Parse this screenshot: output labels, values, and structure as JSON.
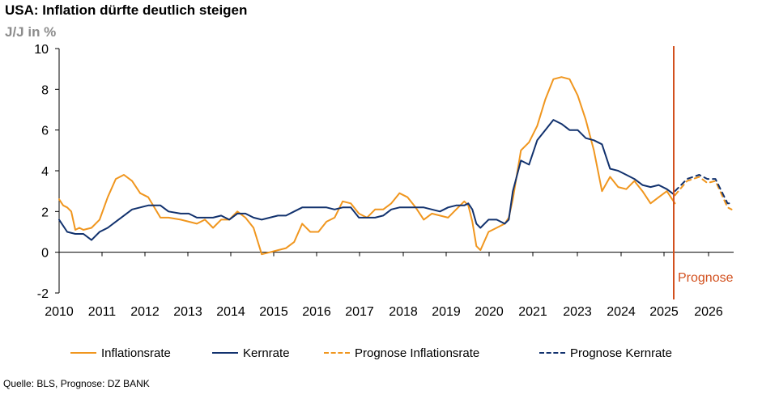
{
  "chart_data": {
    "type": "line",
    "title": "USA: Inflation dürfte deutlich steigen",
    "subtitle": "J/J in %",
    "source": "Quelle: BLS, Prognose: DZ BANK",
    "ylim": [
      -2,
      10
    ],
    "y_ticks": [
      "-2",
      "0",
      "2",
      "4",
      "6",
      "8",
      "10"
    ],
    "x_ticks": [
      "2010",
      "2011",
      "2012",
      "2013",
      "2014",
      "2015",
      "2016",
      "2017",
      "2018",
      "2019",
      "2020",
      "2021",
      "2023",
      "2024",
      "2025",
      "2026"
    ],
    "prognose_label": "Prognose",
    "prognose_start": 2025.2,
    "colors": {
      "inflation": "#f0961e",
      "core": "#12326e",
      "prognose_line": "#d2501e",
      "axis": "#000000"
    },
    "legend": [
      {
        "name": "Inflationsrate",
        "color": "#f0961e",
        "style": "solid"
      },
      {
        "name": "Kernrate",
        "color": "#12326e",
        "style": "solid"
      },
      {
        "name": "Prognose Inflationsrate",
        "color": "#f0961e",
        "style": "dashed"
      },
      {
        "name": "Prognose Kernrate",
        "color": "#12326e",
        "style": "dashed"
      }
    ],
    "series": [
      {
        "name": "Inflationsrate",
        "x": [
          2010.0,
          2010.1,
          2010.2,
          2010.3,
          2010.4,
          2010.5,
          2010.6,
          2010.8,
          2011.0,
          2011.2,
          2011.4,
          2011.6,
          2011.8,
          2012.0,
          2012.2,
          2012.5,
          2012.7,
          2013.0,
          2013.2,
          2013.4,
          2013.6,
          2013.8,
          2014.0,
          2014.2,
          2014.4,
          2014.6,
          2014.8,
          2015.0,
          2015.2,
          2015.4,
          2015.6,
          2015.8,
          2016.0,
          2016.2,
          2016.4,
          2016.6,
          2016.8,
          2017.0,
          2017.2,
          2017.4,
          2017.6,
          2017.8,
          2018.0,
          2018.2,
          2018.4,
          2018.6,
          2018.8,
          2019.0,
          2019.2,
          2019.4,
          2019.6,
          2019.8,
          2020.0,
          2020.1,
          2020.2,
          2020.3,
          2020.4,
          2020.6,
          2020.8,
          2021.0,
          2021.1,
          2021.2,
          2021.4,
          2021.6,
          2021.8,
          2022.0,
          2022.2,
          2022.4,
          2022.6,
          2022.8,
          2023.0,
          2023.2,
          2023.4,
          2023.6,
          2023.8,
          2024.0,
          2024.2,
          2024.4,
          2024.6,
          2024.8,
          2025.0,
          2025.2
        ],
        "values": [
          2.6,
          2.3,
          2.2,
          2.0,
          1.1,
          1.2,
          1.1,
          1.2,
          1.6,
          2.7,
          3.6,
          3.8,
          3.5,
          2.9,
          2.7,
          1.7,
          1.7,
          1.6,
          1.5,
          1.4,
          1.6,
          1.2,
          1.6,
          1.6,
          2.0,
          1.7,
          1.2,
          -0.1,
          0.0,
          0.1,
          0.2,
          0.5,
          1.4,
          1.0,
          1.0,
          1.5,
          1.7,
          2.5,
          2.4,
          1.9,
          1.7,
          2.1,
          2.1,
          2.4,
          2.9,
          2.7,
          2.2,
          1.6,
          1.9,
          1.8,
          1.7,
          2.1,
          2.5,
          2.3,
          1.5,
          0.3,
          0.1,
          1.0,
          1.2,
          1.4,
          1.7,
          2.6,
          5.0,
          5.4,
          6.2,
          7.5,
          8.5,
          8.6,
          8.5,
          7.7,
          6.5,
          5.0,
          3.0,
          3.7,
          3.2,
          3.1,
          3.5,
          3.0,
          2.4,
          2.7,
          3.0,
          2.4
        ]
      },
      {
        "name": "Kernrate",
        "x": [
          2010.0,
          2010.2,
          2010.4,
          2010.6,
          2010.8,
          2011.0,
          2011.2,
          2011.4,
          2011.6,
          2011.8,
          2012.0,
          2012.2,
          2012.5,
          2012.7,
          2013.0,
          2013.2,
          2013.4,
          2013.6,
          2013.8,
          2014.0,
          2014.2,
          2014.4,
          2014.6,
          2014.8,
          2015.0,
          2015.2,
          2015.4,
          2015.6,
          2015.8,
          2016.0,
          2016.2,
          2016.4,
          2016.6,
          2016.8,
          2017.0,
          2017.2,
          2017.4,
          2017.6,
          2017.8,
          2018.0,
          2018.2,
          2018.4,
          2018.6,
          2018.8,
          2019.0,
          2019.2,
          2019.4,
          2019.6,
          2019.8,
          2020.0,
          2020.1,
          2020.2,
          2020.3,
          2020.4,
          2020.6,
          2020.8,
          2021.0,
          2021.1,
          2021.2,
          2021.4,
          2021.6,
          2021.8,
          2022.0,
          2022.2,
          2022.4,
          2022.6,
          2022.8,
          2023.0,
          2023.2,
          2023.4,
          2023.6,
          2023.8,
          2024.0,
          2024.2,
          2024.4,
          2024.6,
          2024.8,
          2025.0,
          2025.2
        ],
        "values": [
          1.6,
          1.0,
          0.9,
          0.9,
          0.6,
          1.0,
          1.2,
          1.5,
          1.8,
          2.1,
          2.2,
          2.3,
          2.3,
          2.0,
          1.9,
          1.9,
          1.7,
          1.7,
          1.7,
          1.8,
          1.6,
          1.9,
          1.9,
          1.7,
          1.6,
          1.7,
          1.8,
          1.8,
          2.0,
          2.2,
          2.2,
          2.2,
          2.2,
          2.1,
          2.2,
          2.2,
          1.7,
          1.7,
          1.7,
          1.8,
          2.1,
          2.2,
          2.2,
          2.2,
          2.2,
          2.1,
          2.0,
          2.2,
          2.3,
          2.3,
          2.4,
          2.1,
          1.4,
          1.2,
          1.6,
          1.6,
          1.4,
          1.6,
          3.0,
          4.5,
          4.3,
          5.5,
          6.0,
          6.5,
          6.3,
          6.0,
          6.0,
          5.6,
          5.5,
          5.3,
          4.1,
          4.0,
          3.8,
          3.6,
          3.3,
          3.2,
          3.3,
          3.1,
          2.8
        ]
      },
      {
        "name": "Prognose Inflationsrate",
        "x": [
          2025.2,
          2025.5,
          2025.8,
          2026.0,
          2026.2,
          2026.5,
          2026.6
        ],
        "values": [
          2.8,
          3.5,
          3.7,
          3.4,
          3.5,
          2.2,
          2.1
        ]
      },
      {
        "name": "Prognose Kernrate",
        "x": [
          2025.2,
          2025.5,
          2025.8,
          2026.0,
          2026.2,
          2026.5,
          2026.6
        ],
        "values": [
          3.0,
          3.6,
          3.8,
          3.6,
          3.6,
          2.4,
          2.4
        ]
      }
    ]
  }
}
